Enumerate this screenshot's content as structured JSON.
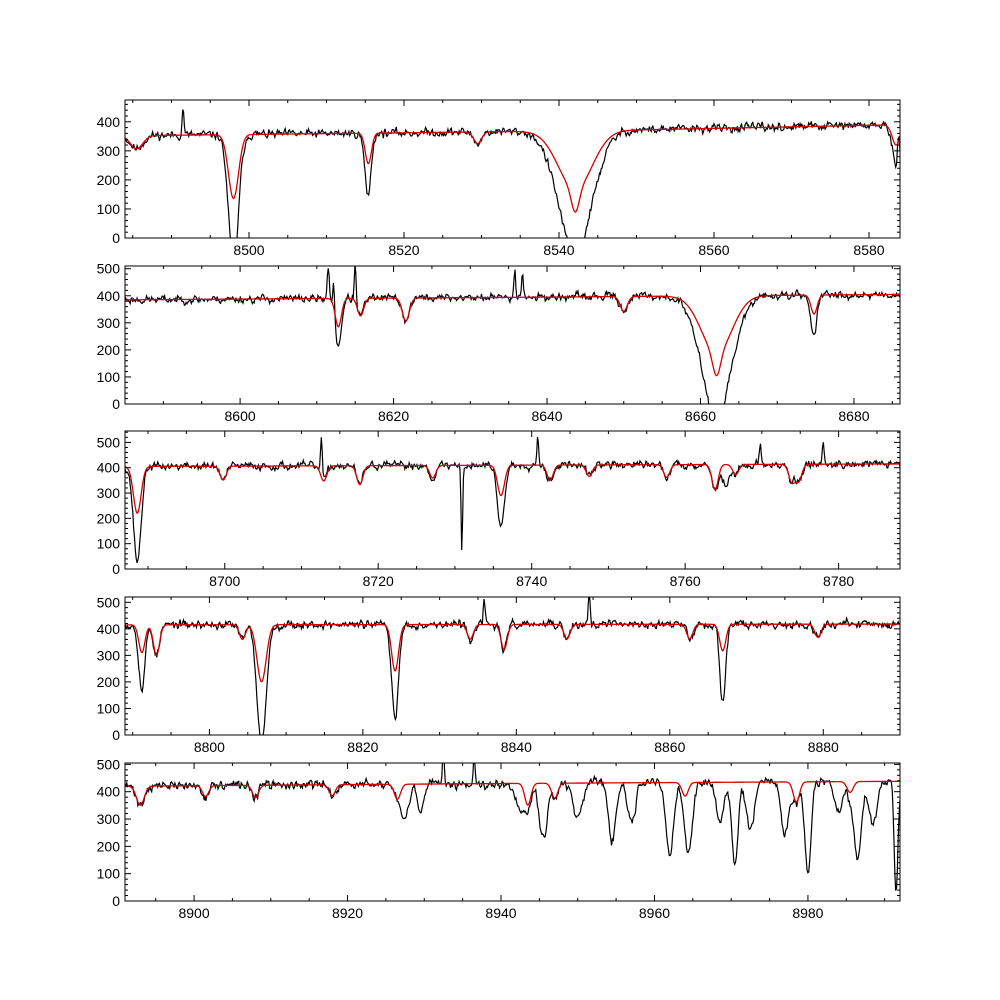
{
  "colors": {
    "observed": "#000000",
    "model": "#d40000",
    "background": "#ffffff"
  },
  "chart_data": [
    {
      "type": "line",
      "xlim": [
        8484,
        8584
      ],
      "ylim": [
        0,
        475
      ],
      "xticks": [
        8500,
        8520,
        8540,
        8560,
        8580
      ],
      "yticks": [
        0,
        100,
        200,
        300,
        400
      ],
      "grid": false,
      "continuum": [
        [
          8484,
          352
        ],
        [
          8520,
          362
        ],
        [
          8550,
          372
        ],
        [
          8584,
          390
        ]
      ],
      "model_lines": [
        [
          8485.5,
          45,
          0.8
        ],
        [
          8498.0,
          220,
          0.65
        ],
        [
          8515.4,
          105,
          0.4
        ],
        [
          8529.5,
          40,
          0.5
        ],
        [
          8542.1,
          200,
          2.2
        ],
        [
          8542.1,
          80,
          0.5
        ],
        [
          8583.5,
          70,
          0.5
        ]
      ],
      "obs_lines": [
        [
          8498.0,
          225,
          0.65
        ],
        [
          8515.3,
          110,
          0.4
        ],
        [
          8542.1,
          210,
          2.2
        ],
        [
          8542.1,
          95,
          0.5
        ],
        [
          8583.6,
          85,
          0.5
        ]
      ],
      "spikes": [
        [
          8491.5,
          95
        ],
        [
          8583.8,
          90
        ]
      ],
      "noise": 16,
      "seed": 11
    },
    {
      "type": "line",
      "xlim": [
        8585,
        8686
      ],
      "ylim": [
        0,
        510
      ],
      "xticks": [
        8600,
        8620,
        8640,
        8660,
        8680
      ],
      "yticks": [
        0,
        100,
        200,
        300,
        400,
        500
      ],
      "grid": false,
      "continuum": [
        [
          8585,
          385
        ],
        [
          8640,
          395
        ],
        [
          8686,
          405
        ]
      ],
      "model_lines": [
        [
          8612.8,
          105,
          0.4
        ],
        [
          8615.7,
          65,
          0.4
        ],
        [
          8621.6,
          85,
          0.45
        ],
        [
          8650.0,
          55,
          0.45
        ],
        [
          8662.1,
          210,
          2.0
        ],
        [
          8662.1,
          85,
          0.5
        ],
        [
          8674.8,
          70,
          0.4
        ]
      ],
      "obs_lines": [
        [
          8662.1,
          215,
          2.0
        ],
        [
          8662.1,
          95,
          0.5
        ],
        [
          8674.7,
          75,
          0.4
        ],
        [
          8612.8,
          70,
          0.4
        ]
      ],
      "spikes": [
        [
          8611.5,
          120
        ],
        [
          8612.2,
          110
        ],
        [
          8615.0,
          130
        ],
        [
          8635.8,
          110
        ],
        [
          8636.8,
          100
        ]
      ],
      "noise": 16,
      "seed": 23
    },
    {
      "type": "line",
      "xlim": [
        8687,
        8788
      ],
      "ylim": [
        0,
        545
      ],
      "xticks": [
        8700,
        8720,
        8740,
        8760,
        8780
      ],
      "yticks": [
        0,
        100,
        200,
        300,
        400,
        500
      ],
      "grid": false,
      "continuum": [
        [
          8687,
          405
        ],
        [
          8788,
          415
        ]
      ],
      "model_lines": [
        [
          8688.6,
          185,
          0.5
        ],
        [
          8699.8,
          55,
          0.4
        ],
        [
          8712.9,
          60,
          0.4
        ],
        [
          8717.6,
          75,
          0.4
        ],
        [
          8727.1,
          50,
          0.4
        ],
        [
          8736.0,
          120,
          0.45
        ],
        [
          8742.4,
          60,
          0.4
        ],
        [
          8747.5,
          45,
          0.4
        ],
        [
          8757.6,
          50,
          0.4
        ],
        [
          8763.9,
          100,
          0.4
        ],
        [
          8766.6,
          40,
          0.4
        ],
        [
          8773.9,
          70,
          0.4
        ],
        [
          8774.8,
          65,
          0.4
        ]
      ],
      "obs_lines": [
        [
          8688.6,
          190,
          0.5
        ],
        [
          8730.9,
          340,
          0.1
        ],
        [
          8765.3,
          85,
          0.45
        ],
        [
          8736.0,
          125,
          0.45
        ]
      ],
      "spikes": [
        [
          8712.6,
          150
        ],
        [
          8740.8,
          120
        ],
        [
          8769.8,
          75
        ],
        [
          8778.0,
          90
        ]
      ],
      "noise": 17,
      "seed": 37
    },
    {
      "type": "line",
      "xlim": [
        8789,
        8890
      ],
      "ylim": [
        0,
        520
      ],
      "xticks": [
        8800,
        8820,
        8840,
        8860,
        8880
      ],
      "yticks": [
        0,
        100,
        200,
        300,
        400,
        500
      ],
      "grid": false,
      "continuum": [
        [
          8789,
          415
        ],
        [
          8890,
          418
        ]
      ],
      "model_lines": [
        [
          8791.2,
          105,
          0.4
        ],
        [
          8793.1,
          115,
          0.4
        ],
        [
          8806.8,
          215,
          0.6
        ],
        [
          8804.3,
          55,
          0.4
        ],
        [
          8824.2,
          175,
          0.45
        ],
        [
          8834.0,
          55,
          0.4
        ],
        [
          8838.4,
          95,
          0.4
        ],
        [
          8846.6,
          55,
          0.4
        ],
        [
          8862.6,
          55,
          0.4
        ],
        [
          8866.9,
          100,
          0.4
        ],
        [
          8879.3,
          50,
          0.4
        ]
      ],
      "obs_lines": [
        [
          8791.2,
          140,
          0.4
        ],
        [
          8806.8,
          230,
          0.6
        ],
        [
          8824.2,
          175,
          0.45
        ],
        [
          8866.9,
          195,
          0.35
        ]
      ],
      "spikes": [
        [
          8835.8,
          95
        ],
        [
          8849.5,
          120
        ]
      ],
      "noise": 17,
      "seed": 53
    },
    {
      "type": "line",
      "xlim": [
        8891,
        8992
      ],
      "ylim": [
        0,
        505
      ],
      "xticks": [
        8900,
        8920,
        8940,
        8960,
        8980
      ],
      "yticks": [
        0,
        100,
        200,
        300,
        400,
        500
      ],
      "grid": false,
      "continuum": [
        [
          8891,
          420
        ],
        [
          8940,
          430
        ],
        [
          8992,
          438
        ]
      ],
      "model_lines": [
        [
          8893.0,
          70,
          0.5
        ],
        [
          8901.5,
          40,
          0.4
        ],
        [
          8908.0,
          45,
          0.4
        ],
        [
          8918.0,
          40,
          0.4
        ],
        [
          8926.5,
          55,
          0.4
        ],
        [
          8943.5,
          80,
          0.4
        ],
        [
          8947.0,
          55,
          0.4
        ],
        [
          8964.0,
          50,
          0.4
        ],
        [
          8978.5,
          75,
          0.4
        ],
        [
          8985.5,
          40,
          0.4
        ]
      ],
      "obs_lines": [
        [
          8927.5,
          130,
          0.5
        ],
        [
          8929.5,
          110,
          0.4
        ],
        [
          8942.5,
          90,
          0.6
        ],
        [
          8945.5,
          200,
          0.5
        ],
        [
          8950.0,
          130,
          0.6
        ],
        [
          8954.5,
          210,
          0.5
        ],
        [
          8957.0,
          150,
          0.5
        ],
        [
          8962.0,
          260,
          0.5
        ],
        [
          8964.5,
          230,
          0.5
        ],
        [
          8968.5,
          140,
          0.5
        ],
        [
          8970.5,
          300,
          0.4
        ],
        [
          8972.5,
          180,
          0.5
        ],
        [
          8977.0,
          190,
          0.5
        ],
        [
          8980.0,
          340,
          0.4
        ],
        [
          8984.0,
          120,
          0.5
        ],
        [
          8986.5,
          280,
          0.5
        ],
        [
          8988.5,
          160,
          0.5
        ],
        [
          8991.5,
          400,
          0.25
        ]
      ],
      "spikes": [
        [
          8932.5,
          140
        ],
        [
          8936.5,
          100
        ]
      ],
      "noise": 18,
      "seed": 71
    }
  ]
}
